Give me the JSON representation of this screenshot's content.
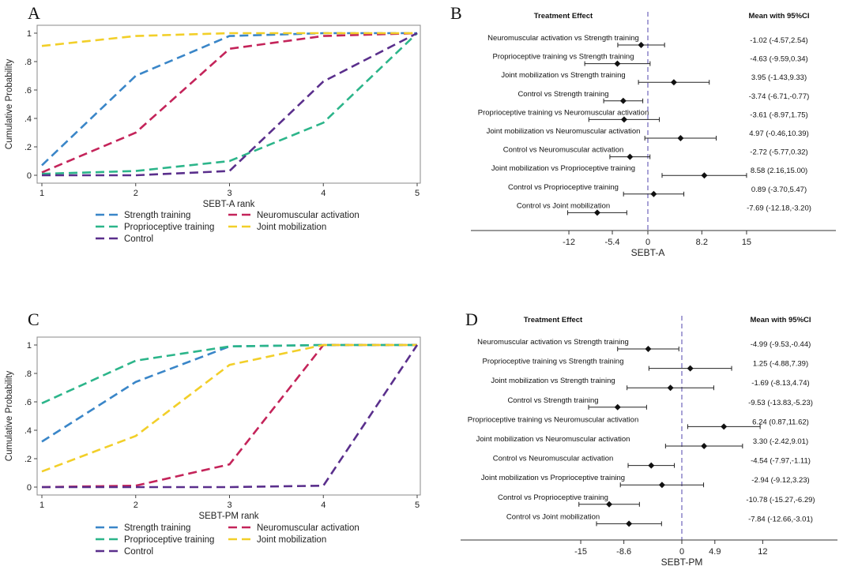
{
  "colors": {
    "strength": "#3a86c8",
    "neuro": "#c4245a",
    "proprio": "#2cb58a",
    "joint": "#f2cf29",
    "control": "#5a2f8c",
    "refline": "#7a6fc0"
  },
  "chart_data": [
    {
      "panel": "A",
      "type": "line",
      "xlabel": "SEBT-A rank",
      "ylabel": "Cumulative Probability",
      "x": [
        1,
        2,
        3,
        4,
        5
      ],
      "xlim": [
        1,
        5
      ],
      "ylim": [
        0,
        1
      ],
      "yticks": [
        "0",
        ".2",
        ".4",
        ".6",
        ".8",
        "1"
      ],
      "xticks": [
        "1",
        "2",
        "3",
        "4",
        "5"
      ],
      "series": [
        {
          "name": "Strength training",
          "key": "strength",
          "values": [
            0.07,
            0.7,
            0.98,
            1.0,
            1.0
          ]
        },
        {
          "name": "Neuromuscular activation",
          "key": "neuro",
          "values": [
            0.02,
            0.3,
            0.89,
            0.98,
            1.0
          ]
        },
        {
          "name": "Proprioceptive training",
          "key": "proprio",
          "values": [
            0.01,
            0.03,
            0.1,
            0.37,
            1.0
          ]
        },
        {
          "name": "Joint mobilization",
          "key": "joint",
          "values": [
            0.91,
            0.98,
            1.0,
            1.0,
            1.0
          ]
        },
        {
          "name": "Control",
          "key": "control",
          "values": [
            0.0,
            0.0,
            0.03,
            0.66,
            1.0
          ]
        }
      ]
    },
    {
      "panel": "B",
      "type": "forest",
      "header_left": "Treatment Effect",
      "header_right": "Mean with 95%CI",
      "xlabel": "SEBT-A",
      "xlim": [
        -24,
        26
      ],
      "xticks": [
        -12,
        -5.4,
        0,
        8.2,
        15
      ],
      "xtick_labels": [
        "-12",
        "-5.4",
        "0",
        "8.2",
        "15"
      ],
      "rows": [
        {
          "label": "Neuromuscular activation  vs Strength training",
          "mean": -1.02,
          "lo": -4.57,
          "hi": 2.54,
          "text": "-1.02 (-4.57,2.54)"
        },
        {
          "label": "Proprioceptive training vs Strength training",
          "mean": -4.63,
          "lo": -9.59,
          "hi": 0.34,
          "text": "-4.63 (-9.59,0.34)"
        },
        {
          "label": "Joint mobilization vs Strength training",
          "mean": 3.95,
          "lo": -1.43,
          "hi": 9.33,
          "text": "3.95 (-1.43,9.33)"
        },
        {
          "label": "Control vs Strength training",
          "mean": -3.74,
          "lo": -6.71,
          "hi": -0.77,
          "text": "-3.74 (-6.71,-0.77)"
        },
        {
          "label": "Proprioceptive training vs Neuromuscular activation",
          "mean": -3.61,
          "lo": -8.97,
          "hi": 1.75,
          "text": "-3.61 (-8.97,1.75)"
        },
        {
          "label": "Joint mobilization vs Neuromuscular activation",
          "mean": 4.97,
          "lo": -0.46,
          "hi": 10.39,
          "text": "4.97 (-0.46,10.39)"
        },
        {
          "label": "Control vs Neuromuscular activation",
          "mean": -2.72,
          "lo": -5.77,
          "hi": 0.32,
          "text": "-2.72 (-5.77,0.32)"
        },
        {
          "label": "Joint mobilization vs Proprioceptive training",
          "mean": 8.58,
          "lo": 2.16,
          "hi": 15.0,
          "text": "8.58 (2.16,15.00)"
        },
        {
          "label": "Control vs Proprioceptive training",
          "mean": 0.89,
          "lo": -3.7,
          "hi": 5.47,
          "text": "0.89 (-3.70,5.47)"
        },
        {
          "label": "Control vs Joint mobilization",
          "mean": -7.69,
          "lo": -12.18,
          "hi": -3.2,
          "text": "-7.69 (-12.18,-3.20)"
        }
      ]
    },
    {
      "panel": "C",
      "type": "line",
      "xlabel": "SEBT-PM rank",
      "ylabel": "Cumulative Probability",
      "x": [
        1,
        2,
        3,
        4,
        5
      ],
      "xlim": [
        1,
        5
      ],
      "ylim": [
        0,
        1
      ],
      "yticks": [
        "0",
        ".2",
        ".4",
        ".6",
        ".8",
        "1"
      ],
      "xticks": [
        "1",
        "2",
        "3",
        "4",
        "5"
      ],
      "series": [
        {
          "name": "Strength training",
          "key": "strength",
          "values": [
            0.32,
            0.74,
            0.99,
            1.0,
            1.0
          ]
        },
        {
          "name": "Neuromuscular activation",
          "key": "neuro",
          "values": [
            0.0,
            0.01,
            0.16,
            1.0,
            1.0
          ]
        },
        {
          "name": "Proprioceptive training",
          "key": "proprio",
          "values": [
            0.59,
            0.89,
            0.99,
            1.0,
            1.0
          ]
        },
        {
          "name": "Joint mobilization",
          "key": "joint",
          "values": [
            0.11,
            0.36,
            0.86,
            1.0,
            1.0
          ]
        },
        {
          "name": "Control",
          "key": "control",
          "values": [
            0.0,
            0.0,
            0.0,
            0.01,
            1.0
          ]
        }
      ]
    },
    {
      "panel": "D",
      "type": "forest",
      "header_left": "Treatment Effect",
      "header_right": "Mean with 95%CI",
      "xlabel": "SEBT-PM",
      "xlim": [
        -30,
        26
      ],
      "xticks": [
        -15,
        -8.6,
        0,
        4.9,
        12
      ],
      "xtick_labels": [
        "-15",
        "-8.6",
        "0",
        "4.9",
        "12"
      ],
      "rows": [
        {
          "label": "Neuromuscular activation  vs Strength training",
          "mean": -4.99,
          "lo": -9.53,
          "hi": -0.44,
          "text": "-4.99 (-9.53,-0.44)"
        },
        {
          "label": "Proprioceptive training vs Strength training",
          "mean": 1.25,
          "lo": -4.88,
          "hi": 7.39,
          "text": "1.25 (-4.88,7.39)"
        },
        {
          "label": "Joint mobilization vs Strength training",
          "mean": -1.69,
          "lo": -8.13,
          "hi": 4.74,
          "text": "-1.69 (-8.13,4.74)"
        },
        {
          "label": "Control vs Strength training",
          "mean": -9.53,
          "lo": -13.83,
          "hi": -5.23,
          "text": "-9.53 (-13.83,-5.23)"
        },
        {
          "label": "Proprioceptive training vs Neuromuscular activation",
          "mean": 6.24,
          "lo": 0.87,
          "hi": 11.62,
          "text": "6.24 (0.87,11.62)"
        },
        {
          "label": "Joint mobilization vs Neuromuscular activation",
          "mean": 3.3,
          "lo": -2.42,
          "hi": 9.01,
          "text": "3.30 (-2.42,9.01)"
        },
        {
          "label": "Control vs Neuromuscular activation",
          "mean": -4.54,
          "lo": -7.97,
          "hi": -1.11,
          "text": "-4.54 (-7.97,-1.11)"
        },
        {
          "label": "Joint mobilization vs Proprioceptive training",
          "mean": -2.94,
          "lo": -9.12,
          "hi": 3.23,
          "text": "-2.94 (-9.12,3.23)"
        },
        {
          "label": "Control vs Proprioceptive training",
          "mean": -10.78,
          "lo": -15.27,
          "hi": -6.29,
          "text": "-10.78 (-15.27,-6.29)"
        },
        {
          "label": "Control vs Joint mobilization",
          "mean": -7.84,
          "lo": -12.66,
          "hi": -3.01,
          "text": "-7.84 (-12.66,-3.01)"
        }
      ]
    }
  ]
}
